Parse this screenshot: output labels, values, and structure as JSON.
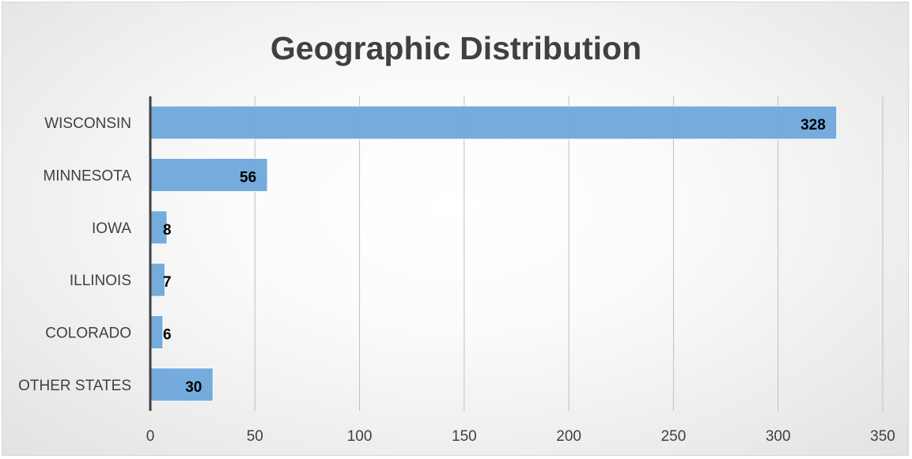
{
  "chart_data": {
    "type": "bar",
    "orientation": "horizontal",
    "title": "Geographic Distribution",
    "categories": [
      "WISCONSIN",
      "MINNESOTA",
      "IOWA",
      "ILLINOIS",
      "COLORADO",
      "OTHER STATES"
    ],
    "values": [
      328,
      56,
      8,
      7,
      6,
      30
    ],
    "data_labels": [
      "328",
      "56",
      "8",
      "7",
      "6",
      "30"
    ],
    "xlim": [
      0,
      350
    ],
    "xticks": [
      "0",
      "50",
      "100",
      "150",
      "200",
      "250",
      "300",
      "350"
    ],
    "grid": "vertical",
    "legend": "none",
    "colors": {
      "bar": "#5b9bd5",
      "bar_fill": "#6fa8dc",
      "axis": "#404040",
      "grid": "#bfbfbf",
      "title": "#404040"
    }
  }
}
